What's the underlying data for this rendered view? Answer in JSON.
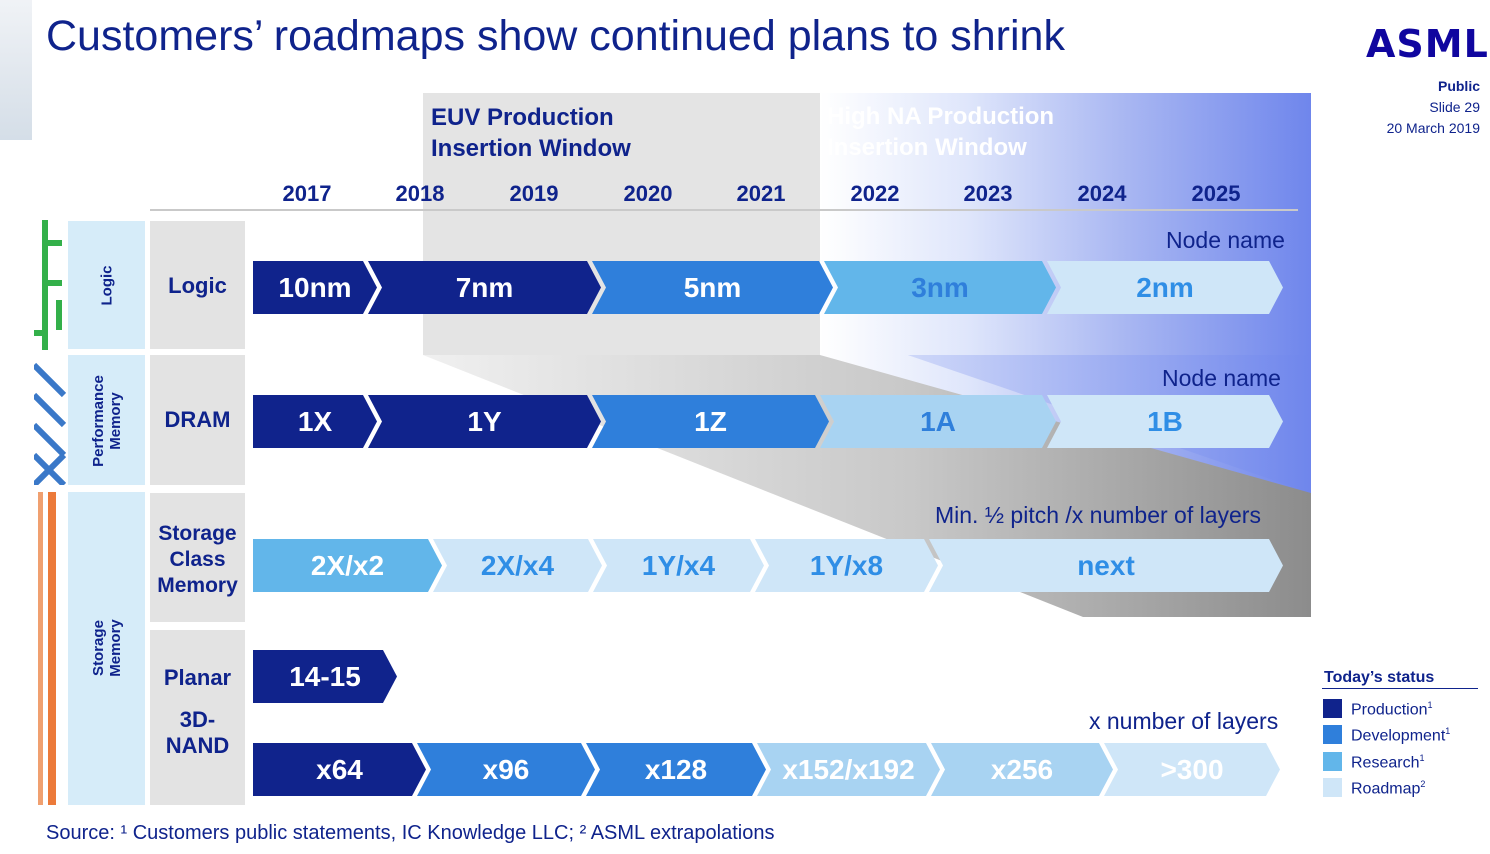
{
  "header": {
    "title": "Customers’ roadmaps show continued plans to shrink",
    "logo": "ASML"
  },
  "meta": {
    "classification": "Public",
    "slide": "Slide 29",
    "date": "20 March 2019"
  },
  "windows": {
    "euv": {
      "line1": "EUV Production",
      "line2": "Insertion Window"
    },
    "high_na": {
      "line1": "High NA Production",
      "line2": "Insertion Window"
    }
  },
  "years": [
    "2017",
    "2018",
    "2019",
    "2020",
    "2021",
    "2022",
    "2023",
    "2024",
    "2025"
  ],
  "categories": {
    "logic": "Logic",
    "perf_memory_line1": "Performance",
    "perf_memory_line2": "Memory",
    "storage_memory_line1": "Storage",
    "storage_memory_line2": "Memory"
  },
  "rows": {
    "logic": {
      "label": "Logic",
      "annotation": "Node name",
      "segments": [
        "10nm",
        "7nm",
        "5nm",
        "3nm",
        "2nm"
      ]
    },
    "dram": {
      "label": "DRAM",
      "annotation": "Node name",
      "segments": [
        "1X",
        "1Y",
        "1Z",
        "1A",
        "1B"
      ]
    },
    "scm": {
      "label_line1": "Storage",
      "label_line2": "Class",
      "label_line3": "Memory",
      "annotation": "Min. ½ pitch /x number of layers",
      "segments": [
        "2X/x2",
        "2X/x4",
        "1Y/x4",
        "1Y/x8",
        "next"
      ]
    },
    "planar": {
      "label": "Planar",
      "segments": [
        "14-15"
      ]
    },
    "nand3d": {
      "label_line1": "3D-",
      "label_line2": "NAND",
      "annotation": "x number of layers",
      "segments": [
        "x64",
        "x96",
        "x128",
        "x152/x192",
        "x256",
        ">300"
      ]
    }
  },
  "legend": {
    "title": "Today’s status",
    "items": [
      {
        "label": "Production",
        "note": "1",
        "color": "#10238c"
      },
      {
        "label": "Development",
        "note": "1",
        "color": "#2f7fdb"
      },
      {
        "label": "Research",
        "note": "1",
        "color": "#62b6ea"
      },
      {
        "label": "Roadmap",
        "note": "2",
        "color": "#cfe6f8"
      }
    ]
  },
  "source": "Source: ¹ Customers public statements, IC Knowledge LLC; ² ASML extrapolations",
  "colors": {
    "brand": "#0f238c",
    "production": "#10238c",
    "development": "#2f7fdb",
    "research": "#62b6ea",
    "roadmap": "#cfe6f8"
  }
}
